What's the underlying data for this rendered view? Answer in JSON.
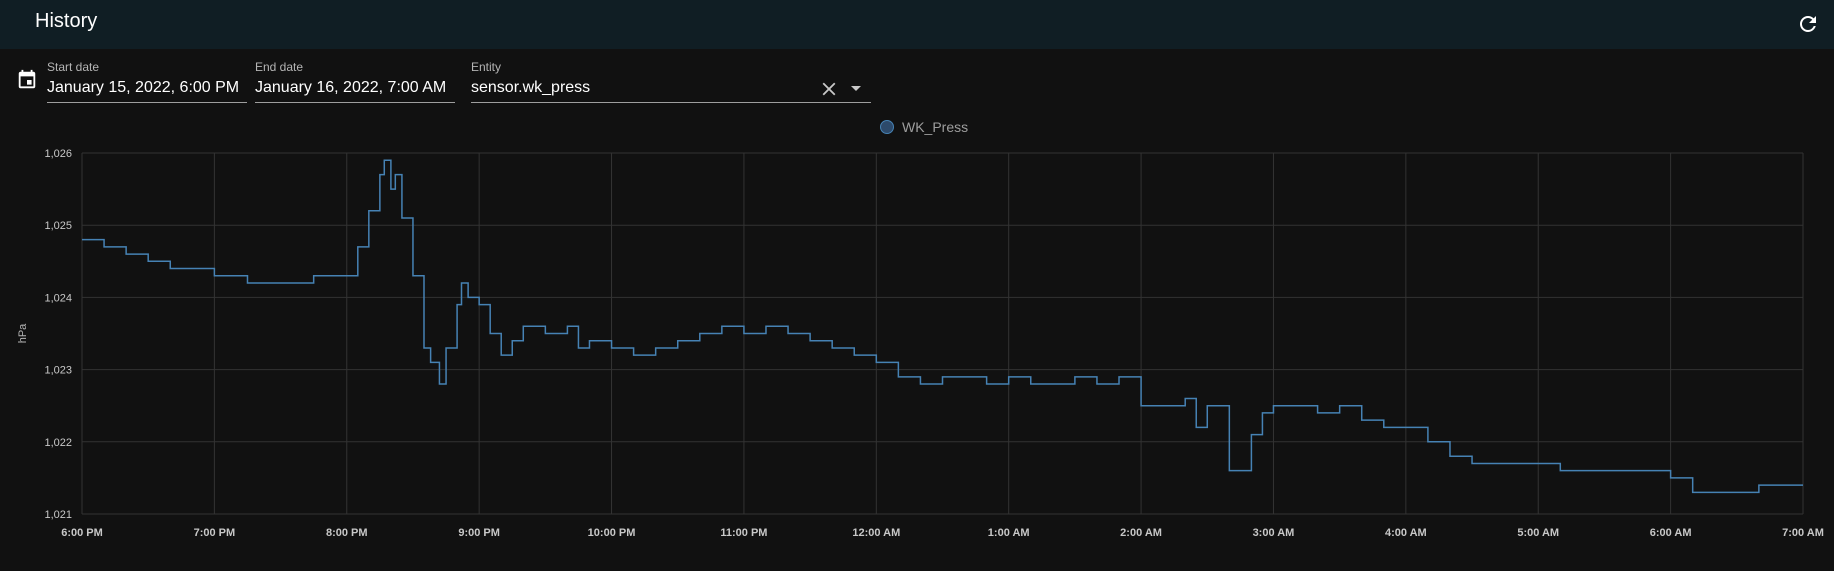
{
  "header": {
    "title": "History",
    "refresh_icon": "refresh-icon"
  },
  "filters": {
    "calendar_icon": "calendar-icon",
    "start_date": {
      "label": "Start date",
      "value": "January 15, 2022, 6:00 PM"
    },
    "end_date": {
      "label": "End date",
      "value": "January 16, 2022, 7:00 AM"
    },
    "entity": {
      "label": "Entity",
      "value": "sensor.wk_press",
      "clear_icon": "close-icon",
      "dropdown_icon": "caret-down-icon"
    }
  },
  "colors": {
    "series": "#4682b4",
    "header_bg": "#101e24",
    "background": "#111111",
    "grid": "#333333"
  },
  "chart_data": {
    "type": "line",
    "title": "",
    "xlabel": "",
    "ylabel": "hPa",
    "ylim": [
      1021,
      1026
    ],
    "yticks": [
      "1,021",
      "1,022",
      "1,023",
      "1,024",
      "1,025",
      "1,026"
    ],
    "xticks": [
      "6:00 PM",
      "7:00 PM",
      "8:00 PM",
      "9:00 PM",
      "10:00 PM",
      "11:00 PM",
      "12:00 AM",
      "1:00 AM",
      "2:00 AM",
      "3:00 AM",
      "4:00 AM",
      "5:00 AM",
      "6:00 AM",
      "7:00 AM"
    ],
    "grid": true,
    "legend_position": "top-center",
    "series": [
      {
        "name": "WK_Press",
        "x": [
          "6:00 PM",
          "6:10 PM",
          "6:20 PM",
          "6:30 PM",
          "6:40 PM",
          "6:50 PM",
          "7:00 PM",
          "7:15 PM",
          "7:30 PM",
          "7:45 PM",
          "8:00 PM",
          "8:05 PM",
          "8:10 PM",
          "8:15 PM",
          "8:17 PM",
          "8:20 PM",
          "8:22 PM",
          "8:25 PM",
          "8:30 PM",
          "8:35 PM",
          "8:38 PM",
          "8:42 PM",
          "8:45 PM",
          "8:50 PM",
          "8:52 PM",
          "8:55 PM",
          "9:00 PM",
          "9:05 PM",
          "9:10 PM",
          "9:15 PM",
          "9:20 PM",
          "9:30 PM",
          "9:40 PM",
          "9:45 PM",
          "9:50 PM",
          "10:00 PM",
          "10:10 PM",
          "10:20 PM",
          "10:30 PM",
          "10:40 PM",
          "10:50 PM",
          "11:00 PM",
          "11:10 PM",
          "11:20 PM",
          "11:30 PM",
          "11:40 PM",
          "11:50 PM",
          "12:00 AM",
          "12:10 AM",
          "12:20 AM",
          "12:30 AM",
          "12:40 AM",
          "12:50 AM",
          "1:00 AM",
          "1:10 AM",
          "1:20 AM",
          "1:30 AM",
          "1:40 AM",
          "1:50 AM",
          "2:00 AM",
          "2:10 AM",
          "2:20 AM",
          "2:25 AM",
          "2:30 AM",
          "2:35 AM",
          "2:40 AM",
          "2:45 AM",
          "2:50 AM",
          "2:55 AM",
          "3:00 AM",
          "3:05 AM",
          "3:10 AM",
          "3:20 AM",
          "3:30 AM",
          "3:40 AM",
          "3:50 AM",
          "4:00 AM",
          "4:10 AM",
          "4:20 AM",
          "4:30 AM",
          "4:40 AM",
          "4:50 AM",
          "5:00 AM",
          "5:10 AM",
          "5:20 AM",
          "5:30 AM",
          "5:40 AM",
          "5:50 AM",
          "6:00 AM",
          "6:10 AM",
          "6:20 AM",
          "6:30 AM",
          "6:40 AM",
          "6:50 AM",
          "7:00 AM"
        ],
        "values": [
          1024.8,
          1024.7,
          1024.6,
          1024.5,
          1024.4,
          1024.4,
          1024.3,
          1024.2,
          1024.2,
          1024.3,
          1024.3,
          1024.7,
          1025.2,
          1025.7,
          1025.9,
          1025.5,
          1025.7,
          1025.1,
          1024.3,
          1023.3,
          1023.1,
          1022.8,
          1023.3,
          1023.9,
          1024.2,
          1024.0,
          1023.9,
          1023.5,
          1023.2,
          1023.4,
          1023.6,
          1023.5,
          1023.6,
          1023.3,
          1023.4,
          1023.3,
          1023.2,
          1023.3,
          1023.4,
          1023.5,
          1023.6,
          1023.5,
          1023.6,
          1023.5,
          1023.4,
          1023.3,
          1023.2,
          1023.1,
          1022.9,
          1022.8,
          1022.9,
          1022.9,
          1022.8,
          1022.9,
          1022.8,
          1022.8,
          1022.9,
          1022.8,
          1022.9,
          1022.5,
          1022.5,
          1022.6,
          1022.2,
          1022.5,
          1022.5,
          1021.6,
          1021.6,
          1022.1,
          1022.4,
          1022.5,
          1022.5,
          1022.5,
          1022.4,
          1022.5,
          1022.3,
          1022.2,
          1022.2,
          1022.0,
          1021.8,
          1021.7,
          1021.7,
          1021.7,
          1021.7,
          1021.6,
          1021.6,
          1021.6,
          1021.6,
          1021.6,
          1021.5,
          1021.3,
          1021.3,
          1021.3,
          1021.4,
          1021.4,
          1021.4
        ]
      }
    ]
  }
}
